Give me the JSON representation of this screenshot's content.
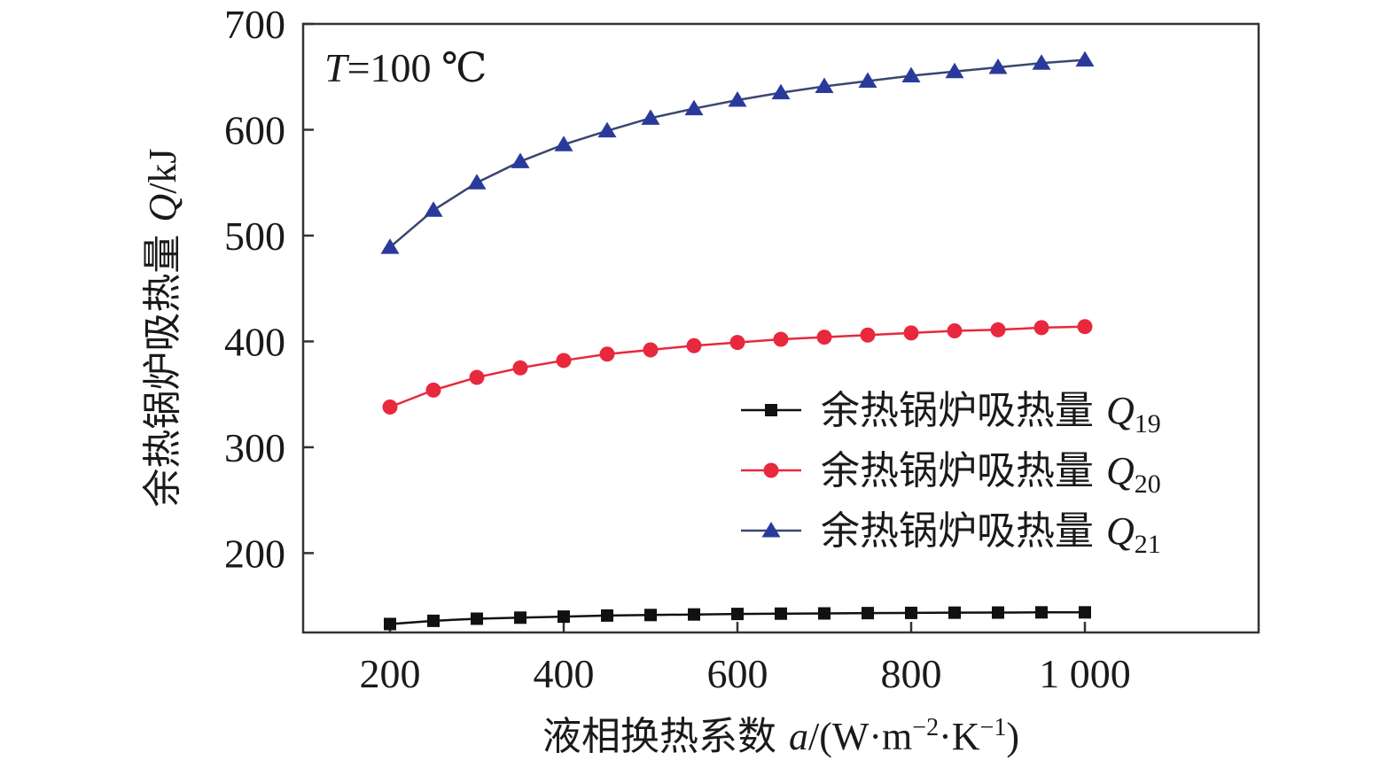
{
  "chart_data": {
    "type": "line",
    "annotation": {
      "var": "T",
      "rest": "=100 ℃"
    },
    "xlabel": {
      "prefix": "液相换热系数 ",
      "var": "a",
      "unit": "/(W·m",
      "sup1": "−2",
      "mid": "·K",
      "sup2": "−1",
      "end": ")"
    },
    "ylabel": {
      "prefix": "余热锅炉吸热量 ",
      "var": "Q",
      "unit": "/kJ"
    },
    "xlim": [
      100,
      1200
    ],
    "ylim": [
      125,
      700
    ],
    "xticks": [
      200,
      400,
      600,
      800,
      1000
    ],
    "xtick_labels": [
      "200",
      "400",
      "600",
      "800",
      "1 000"
    ],
    "yticks": [
      200,
      300,
      400,
      500,
      600,
      700
    ],
    "ytick_labels": [
      "200",
      "300",
      "400",
      "500",
      "600",
      "700"
    ],
    "x": [
      200,
      250,
      300,
      350,
      400,
      450,
      500,
      550,
      600,
      650,
      700,
      750,
      800,
      850,
      900,
      950,
      1000
    ],
    "series": [
      {
        "name": "余热锅炉吸热量 Q19",
        "label_base": "余热锅炉吸热量 ",
        "label_var": "Q",
        "label_sub": "19",
        "color": "#111111",
        "marker": "square",
        "values": [
          133,
          136,
          138,
          139,
          140,
          141,
          141.5,
          142,
          142.5,
          142.8,
          143,
          143.3,
          143.5,
          143.7,
          143.8,
          144,
          144
        ]
      },
      {
        "name": "余热锅炉吸热量 Q20",
        "label_base": "余热锅炉吸热量 ",
        "label_var": "Q",
        "label_sub": "20",
        "color": "#e8283c",
        "marker": "circle",
        "values": [
          338,
          354,
          366,
          375,
          382,
          388,
          392,
          396,
          399,
          402,
          404,
          406,
          408,
          410,
          411,
          413,
          414
        ]
      },
      {
        "name": "余热锅炉吸热量 Q21",
        "label_base": "余热锅炉吸热量 ",
        "label_var": "Q",
        "label_sub": "21",
        "color": "#2a3a9c",
        "line_color": "#3a4670",
        "marker": "triangle",
        "values": [
          489,
          524,
          550,
          570,
          586,
          599,
          611,
          620,
          628,
          635,
          641,
          646,
          651,
          655,
          659,
          663,
          666
        ]
      }
    ],
    "legend_position": "center-right",
    "grid": false
  }
}
